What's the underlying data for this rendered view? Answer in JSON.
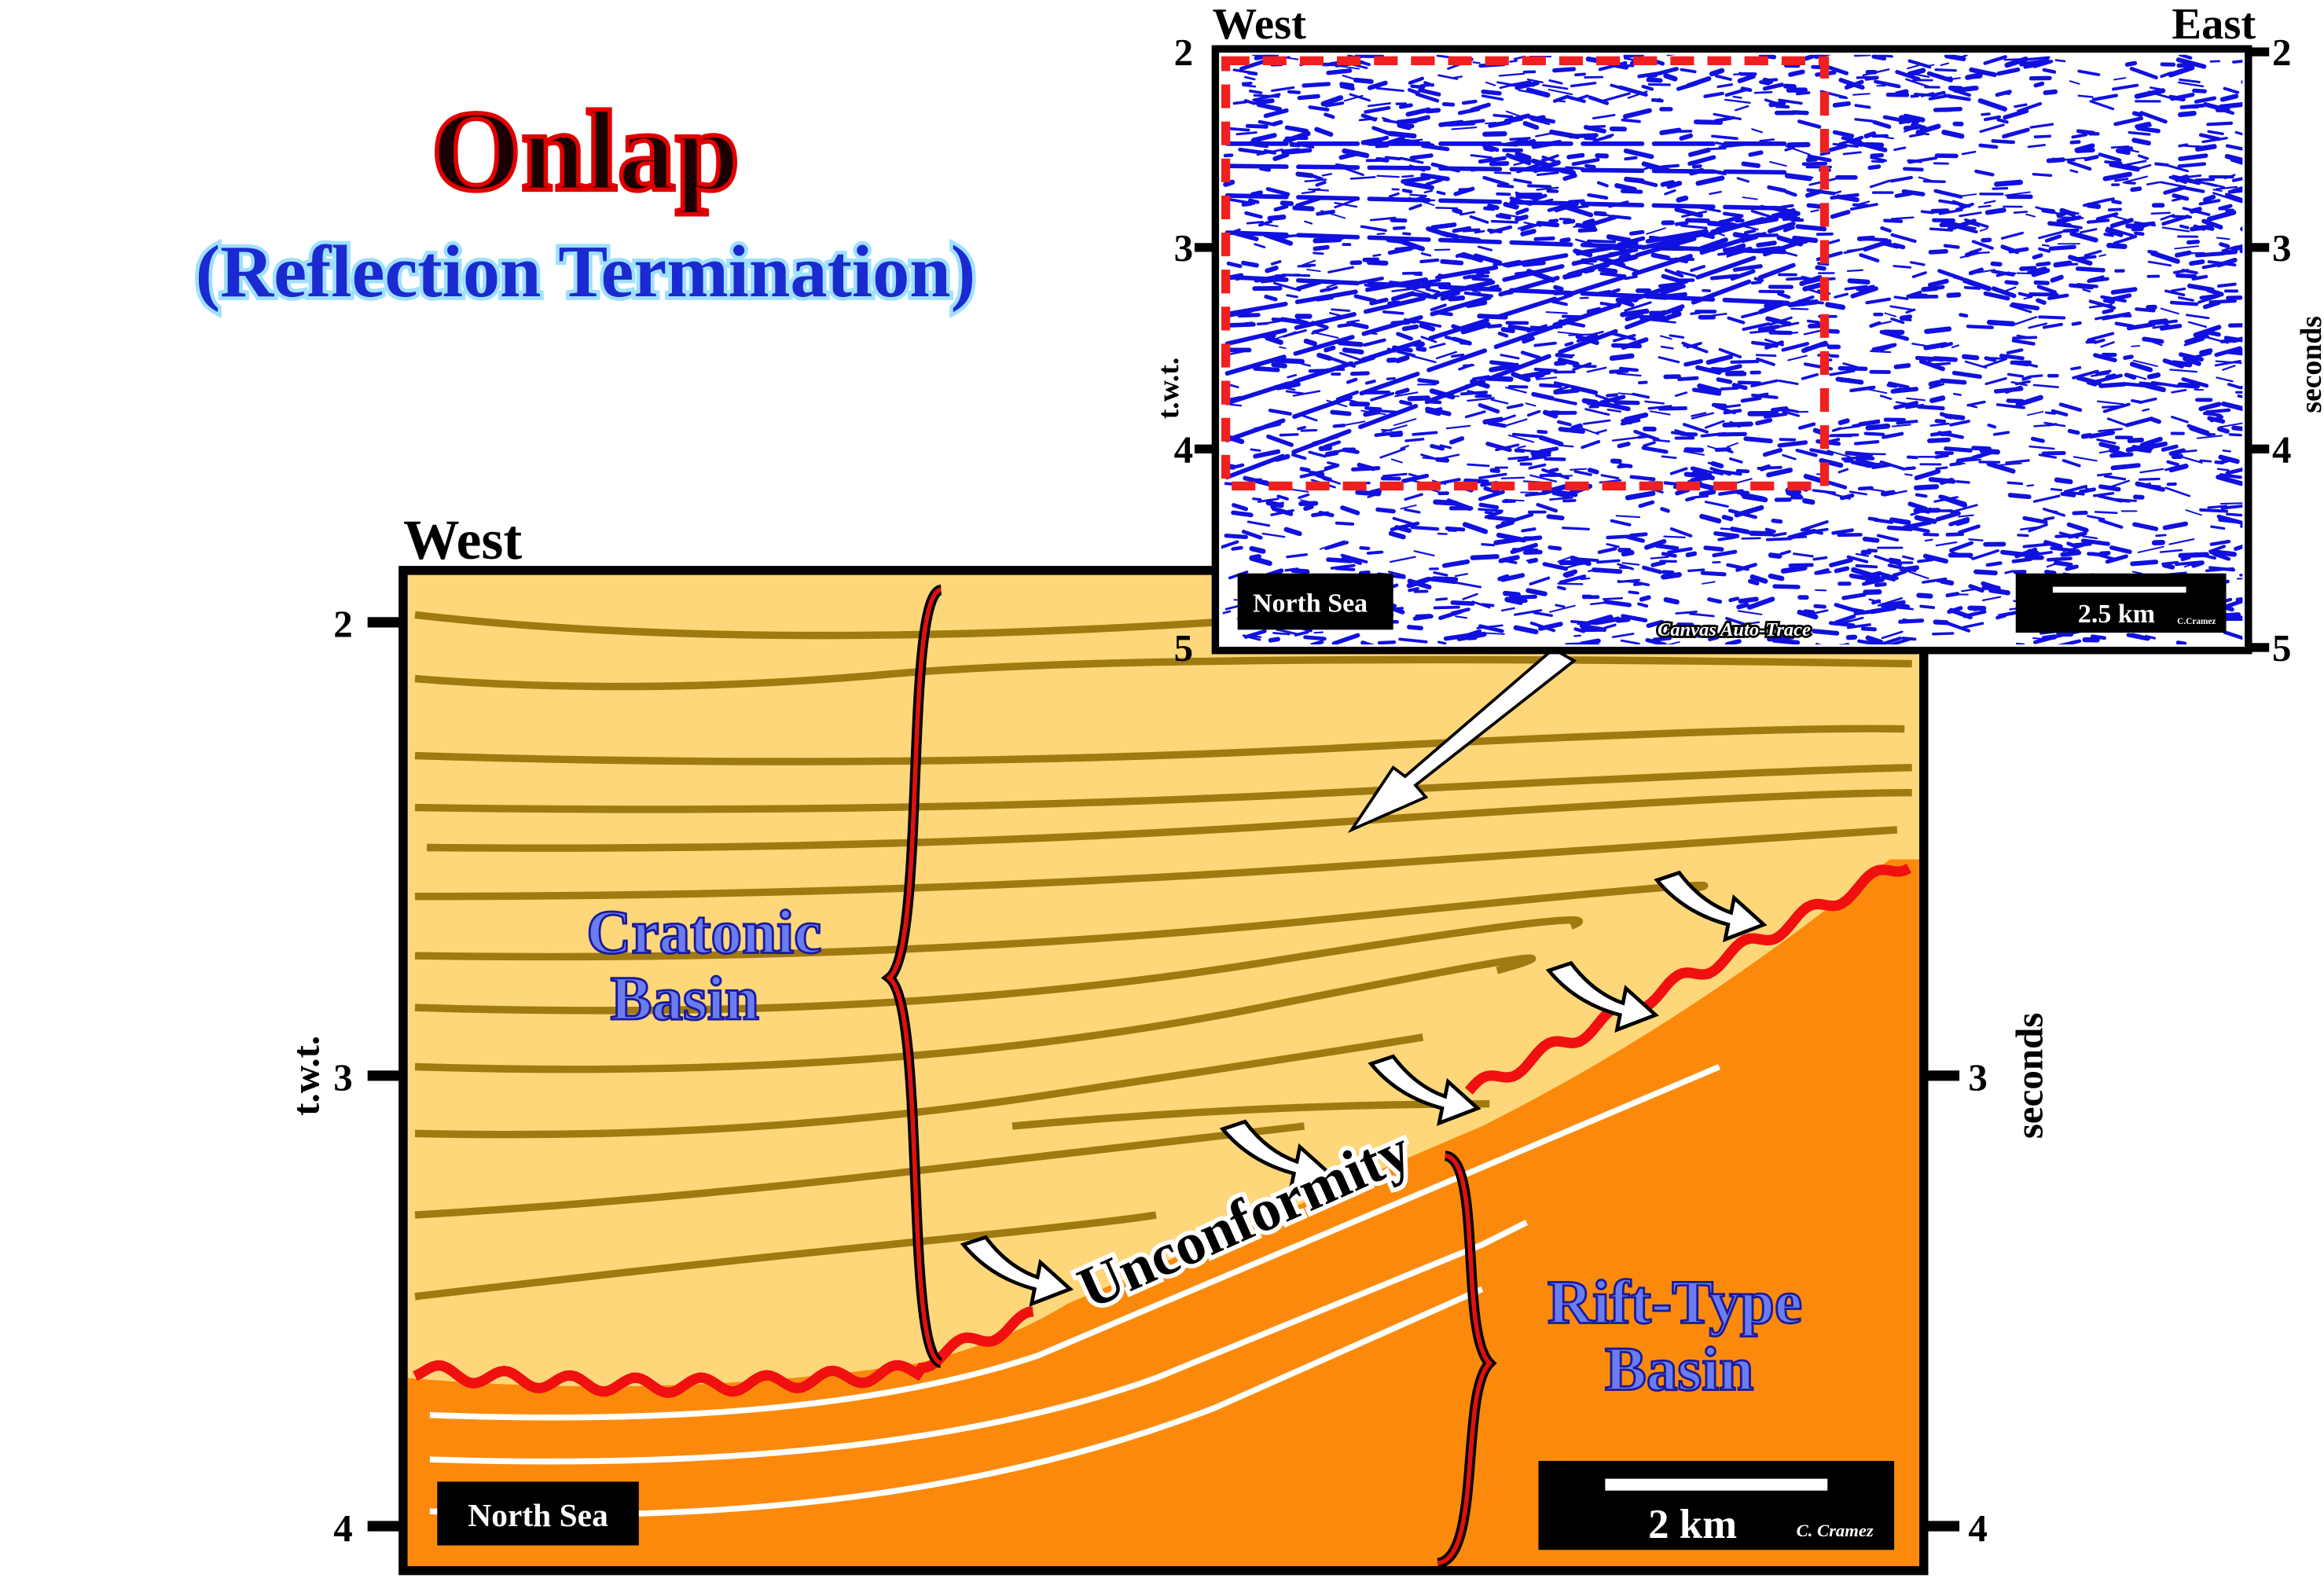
{
  "title": "Onlap",
  "subtitle": "(Reflection Termination)",
  "main_section": {
    "direction": "West",
    "y_axis_label": "t.w.t.",
    "y_axis_label_right": "seconds",
    "ticks_left": [
      "2",
      "3",
      "4"
    ],
    "ticks_right": [
      "3",
      "4"
    ],
    "cratonic_basin": [
      "Cratonic",
      "Basin"
    ],
    "rift_basin": [
      "Rift-Type",
      "Basin"
    ],
    "unconformity": "Unconformity",
    "location": "North Sea",
    "scale": "2 km",
    "credit": "C. Cramez"
  },
  "inset": {
    "west": "West",
    "east": "East",
    "ticks_left": [
      "2",
      "3",
      "4",
      "5"
    ],
    "ticks_right": [
      "2",
      "3",
      "4",
      "5"
    ],
    "y_axis_label": "t.w.t.",
    "y_axis_label_right": "seconds",
    "location": "North Sea",
    "scale": "2.5 km",
    "software": "Canvas Auto-Trace",
    "credit": "C.Cramez"
  }
}
